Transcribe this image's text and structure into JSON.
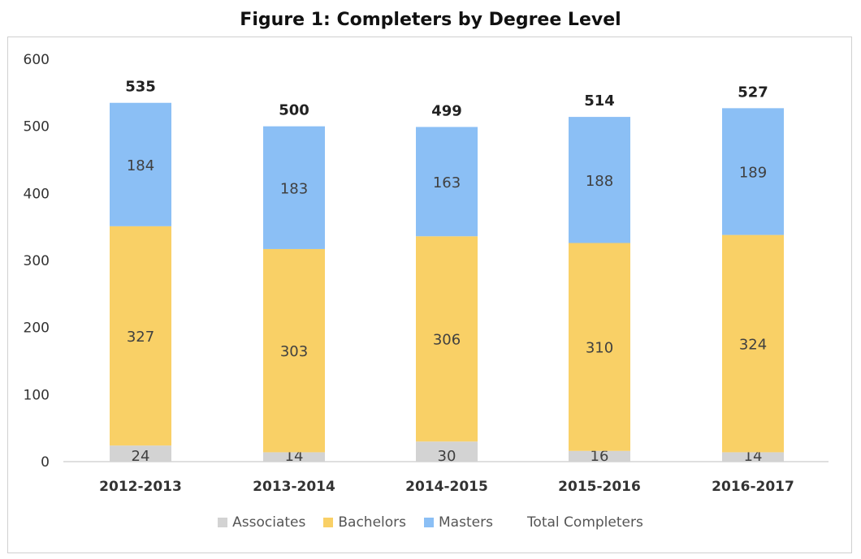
{
  "chart_data": {
    "type": "bar",
    "stacked": true,
    "title": "Figure 1: Completers by Degree Level",
    "categories": [
      "2012-2013",
      "2013-2014",
      "2014-2015",
      "2015-2016",
      "2016-2017"
    ],
    "series": [
      {
        "name": "Associates",
        "values": [
          24,
          14,
          30,
          16,
          14
        ],
        "color": "#d3d3d3"
      },
      {
        "name": "Bachelors",
        "values": [
          327,
          303,
          306,
          310,
          324
        ],
        "color": "#f9d066"
      },
      {
        "name": "Masters",
        "values": [
          184,
          183,
          163,
          188,
          189
        ],
        "color": "#8bbff5"
      }
    ],
    "totals": {
      "name": "Total Completers",
      "values": [
        535,
        500,
        499,
        514,
        527
      ]
    },
    "yticks": [
      0,
      100,
      200,
      300,
      400,
      500,
      600
    ],
    "ylim": [
      0,
      600
    ],
    "legend_position": "bottom",
    "grid": false
  }
}
